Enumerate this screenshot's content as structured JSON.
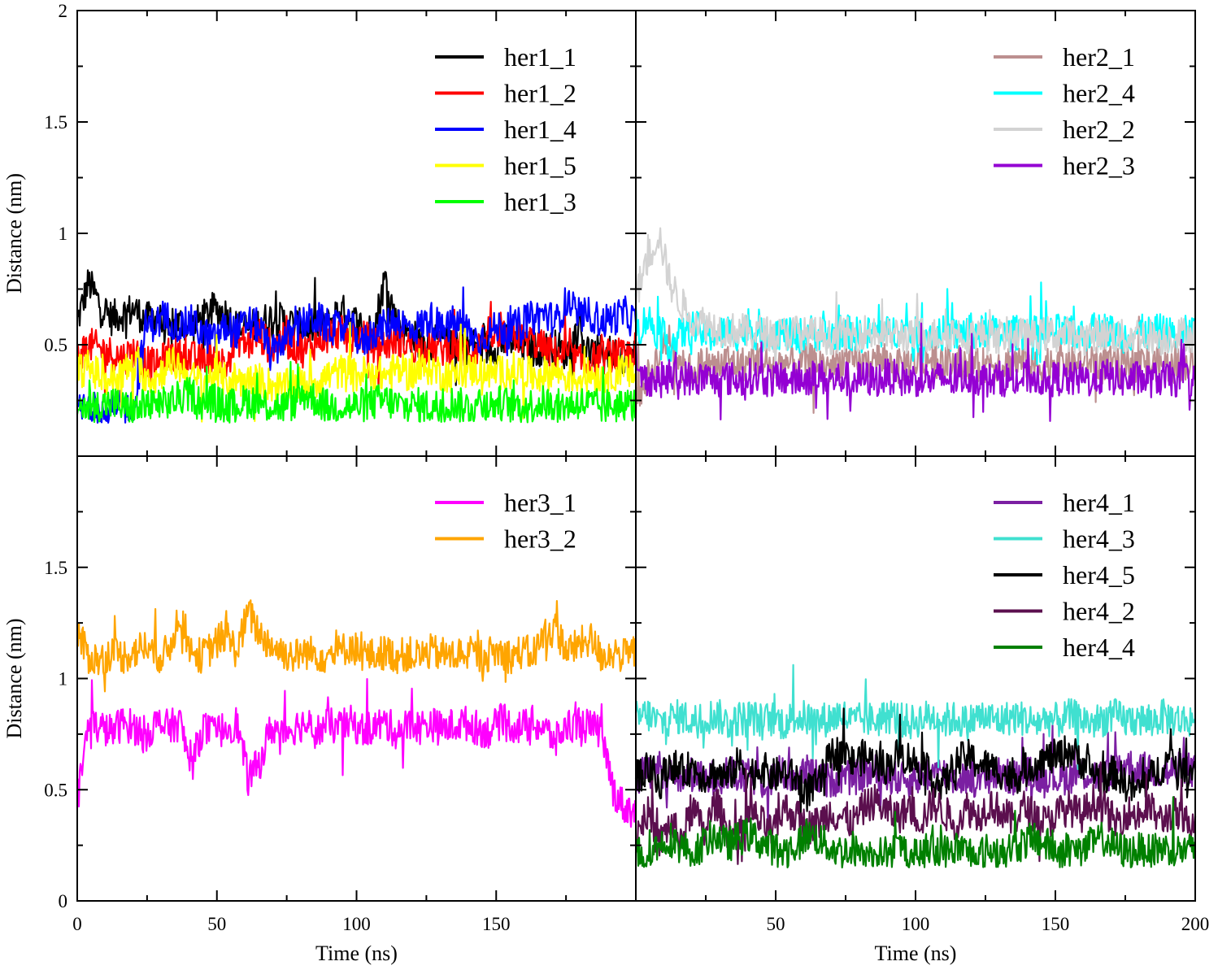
{
  "chart_data": [
    {
      "type": "line",
      "panel": "top-left",
      "xlabel": "",
      "ylabel": "Distance (nm)",
      "xlim": [
        0,
        200
      ],
      "ylim": [
        0,
        2
      ],
      "x_ticks": [],
      "y_ticks": [
        "0.5",
        "1",
        "1.5",
        "2"
      ],
      "legend_position": "top-right",
      "series": [
        {
          "name": "her1_1",
          "color": "#000000",
          "values": [
            0.6,
            0.78,
            0.68,
            0.62,
            0.64,
            0.66,
            0.61,
            0.63,
            0.55,
            0.6,
            0.58,
            0.62,
            0.66,
            0.64,
            0.58,
            0.57,
            0.6,
            0.62,
            0.61,
            0.59,
            0.58,
            0.57,
            0.59,
            0.66,
            0.62,
            0.58,
            0.56,
            0.8,
            0.6,
            0.55,
            0.52,
            0.5,
            0.52,
            0.48,
            0.49,
            0.5,
            0.48,
            0.5,
            0.52,
            0.49,
            0.48,
            0.48,
            0.49,
            0.46,
            0.58,
            0.45,
            0.47,
            0.46,
            0.45,
            0.45
          ]
        },
        {
          "name": "her1_2",
          "color": "#ff0000",
          "values": [
            0.45,
            0.5,
            0.48,
            0.46,
            0.44,
            0.47,
            0.42,
            0.4,
            0.46,
            0.45,
            0.44,
            0.43,
            0.46,
            0.4,
            0.53,
            0.5,
            0.55,
            0.48,
            0.52,
            0.5,
            0.47,
            0.52,
            0.55,
            0.56,
            0.52,
            0.54,
            0.5,
            0.5,
            0.53,
            0.51,
            0.48,
            0.49,
            0.48,
            0.5,
            0.47,
            0.48,
            0.55,
            0.52,
            0.54,
            0.53,
            0.52,
            0.48,
            0.46,
            0.45,
            0.42,
            0.43,
            0.44,
            0.46,
            0.44,
            0.48
          ]
        },
        {
          "name": "her1_4",
          "color": "#0000ff",
          "values": [
            0.2,
            0.22,
            0.21,
            0.2,
            0.22,
            0.21,
            0.58,
            0.6,
            0.62,
            0.58,
            0.6,
            0.55,
            0.52,
            0.58,
            0.56,
            0.6,
            0.58,
            0.45,
            0.52,
            0.55,
            0.6,
            0.62,
            0.58,
            0.57,
            0.58,
            0.5,
            0.56,
            0.58,
            0.62,
            0.57,
            0.58,
            0.62,
            0.56,
            0.6,
            0.58,
            0.52,
            0.55,
            0.58,
            0.56,
            0.6,
            0.62,
            0.64,
            0.6,
            0.7,
            0.62,
            0.64,
            0.6,
            0.62,
            0.64,
            0.6
          ]
        },
        {
          "name": "her1_5",
          "color": "#ffff00",
          "values": [
            0.38,
            0.4,
            0.36,
            0.34,
            0.38,
            0.4,
            0.36,
            0.35,
            0.42,
            0.4,
            0.35,
            0.33,
            0.36,
            0.34,
            0.35,
            0.33,
            0.34,
            0.32,
            0.3,
            0.33,
            0.32,
            0.34,
            0.36,
            0.38,
            0.36,
            0.37,
            0.38,
            0.36,
            0.39,
            0.37,
            0.38,
            0.4,
            0.37,
            0.36,
            0.38,
            0.39,
            0.38,
            0.37,
            0.39,
            0.38,
            0.36,
            0.37,
            0.38,
            0.36,
            0.35,
            0.37,
            0.36,
            0.37,
            0.38,
            0.37
          ]
        },
        {
          "name": "her1_3",
          "color": "#00ff00",
          "values": [
            0.21,
            0.23,
            0.22,
            0.24,
            0.22,
            0.2,
            0.23,
            0.22,
            0.24,
            0.26,
            0.28,
            0.24,
            0.25,
            0.22,
            0.23,
            0.25,
            0.24,
            0.23,
            0.22,
            0.24,
            0.28,
            0.25,
            0.22,
            0.23,
            0.22,
            0.23,
            0.24,
            0.25,
            0.23,
            0.22,
            0.23,
            0.22,
            0.23,
            0.24,
            0.22,
            0.23,
            0.22,
            0.24,
            0.23,
            0.22,
            0.23,
            0.24,
            0.22,
            0.23,
            0.24,
            0.23,
            0.22,
            0.23,
            0.22,
            0.23
          ]
        }
      ]
    },
    {
      "type": "line",
      "panel": "top-right",
      "xlabel": "",
      "ylabel": "",
      "xlim": [
        0,
        200
      ],
      "ylim": [
        0,
        2
      ],
      "x_ticks": [],
      "y_ticks": [],
      "legend_position": "top-right",
      "series": [
        {
          "name": "her2_1",
          "color": "#bc8f8f",
          "values": [
            0.25,
            0.35,
            0.45,
            0.55,
            0.4,
            0.38,
            0.42,
            0.4,
            0.43,
            0.41,
            0.42,
            0.44,
            0.4,
            0.42,
            0.41,
            0.43,
            0.42,
            0.4,
            0.43,
            0.42,
            0.41,
            0.44,
            0.42,
            0.4,
            0.43,
            0.42,
            0.44,
            0.41,
            0.42,
            0.43,
            0.4,
            0.42,
            0.41,
            0.43,
            0.42,
            0.4,
            0.42,
            0.44,
            0.41,
            0.42,
            0.43,
            0.42,
            0.41,
            0.42,
            0.43,
            0.41,
            0.42,
            0.4,
            0.42,
            0.41
          ]
        },
        {
          "name": "her2_4",
          "color": "#00ffff",
          "values": [
            0.55,
            0.62,
            0.55,
            0.5,
            0.55,
            0.58,
            0.55,
            0.54,
            0.56,
            0.55,
            0.57,
            0.54,
            0.56,
            0.55,
            0.53,
            0.56,
            0.55,
            0.54,
            0.56,
            0.55,
            0.54,
            0.56,
            0.55,
            0.57,
            0.55,
            0.54,
            0.56,
            0.55,
            0.54,
            0.57,
            0.55,
            0.56,
            0.54,
            0.55,
            0.56,
            0.55,
            0.54,
            0.56,
            0.55,
            0.54,
            0.56,
            0.57,
            0.55,
            0.54,
            0.56,
            0.55,
            0.56,
            0.54,
            0.55,
            0.56
          ]
        },
        {
          "name": "her2_2",
          "color": "#d3d3d3",
          "values": [
            0.72,
            0.88,
            1.0,
            0.78,
            0.68,
            0.62,
            0.6,
            0.58,
            0.56,
            0.57,
            0.55,
            0.56,
            0.54,
            0.55,
            0.56,
            0.54,
            0.55,
            0.53,
            0.55,
            0.54,
            0.56,
            0.55,
            0.54,
            0.55,
            0.53,
            0.55,
            0.54,
            0.55,
            0.56,
            0.54,
            0.55,
            0.53,
            0.54,
            0.55,
            0.54,
            0.53,
            0.55,
            0.54,
            0.55,
            0.53,
            0.54,
            0.55,
            0.54,
            0.53,
            0.55,
            0.54,
            0.53,
            0.54,
            0.55,
            0.54
          ]
        },
        {
          "name": "her2_3",
          "color": "#9400d3",
          "values": [
            0.34,
            0.35,
            0.34,
            0.35,
            0.36,
            0.34,
            0.35,
            0.34,
            0.35,
            0.34,
            0.36,
            0.35,
            0.34,
            0.35,
            0.34,
            0.35,
            0.36,
            0.34,
            0.35,
            0.34,
            0.35,
            0.34,
            0.36,
            0.35,
            0.34,
            0.35,
            0.34,
            0.35,
            0.34,
            0.36,
            0.35,
            0.34,
            0.35,
            0.34,
            0.35,
            0.36,
            0.34,
            0.35,
            0.34,
            0.35,
            0.34,
            0.36,
            0.35,
            0.34,
            0.35,
            0.34,
            0.35,
            0.34,
            0.35,
            0.34
          ]
        }
      ]
    },
    {
      "type": "line",
      "panel": "bottom-left",
      "xlabel": "Time (ns)",
      "ylabel": "Distance (nm)",
      "xlim": [
        0,
        200
      ],
      "ylim": [
        0,
        2
      ],
      "x_ticks": [
        "0",
        "50",
        "100",
        "150"
      ],
      "y_ticks": [
        "0",
        "0.5",
        "1",
        "1.5"
      ],
      "legend_position": "top-right",
      "series": [
        {
          "name": "her3_1",
          "color": "#ff00ff",
          "values": [
            0.45,
            0.8,
            0.78,
            0.76,
            0.8,
            0.78,
            0.75,
            0.8,
            0.78,
            0.8,
            0.6,
            0.78,
            0.75,
            0.78,
            0.8,
            0.55,
            0.62,
            0.78,
            0.76,
            0.78,
            0.8,
            0.76,
            0.79,
            0.78,
            0.8,
            0.77,
            0.78,
            0.8,
            0.76,
            0.79,
            0.78,
            0.8,
            0.77,
            0.79,
            0.8,
            0.78,
            0.76,
            0.8,
            0.79,
            0.78,
            0.8,
            0.77,
            0.72,
            0.79,
            0.8,
            0.78,
            0.76,
            0.5,
            0.42,
            0.4
          ]
        },
        {
          "name": "her3_2",
          "color": "#ffa500",
          "values": [
            1.2,
            1.1,
            1.08,
            1.12,
            1.1,
            1.12,
            1.15,
            1.1,
            1.12,
            1.3,
            1.12,
            1.1,
            1.15,
            1.2,
            1.12,
            1.3,
            1.2,
            1.15,
            1.12,
            1.1,
            1.12,
            1.11,
            1.1,
            1.12,
            1.15,
            1.11,
            1.1,
            1.12,
            1.1,
            1.11,
            1.1,
            1.12,
            1.11,
            1.1,
            1.12,
            1.1,
            1.11,
            1.12,
            1.1,
            1.12,
            1.11,
            1.2,
            1.22,
            1.12,
            1.15,
            1.18,
            1.1,
            1.12,
            1.1,
            1.12
          ]
        }
      ]
    },
    {
      "type": "line",
      "panel": "bottom-right",
      "xlabel": "Time (ns)",
      "ylabel": "",
      "xlim": [
        0,
        200
      ],
      "ylim": [
        0,
        2
      ],
      "x_ticks": [
        "50",
        "100",
        "150",
        "200"
      ],
      "y_ticks": [],
      "legend_position": "top-right",
      "series": [
        {
          "name": "her4_1",
          "color": "#7b1fa2",
          "values": [
            0.55,
            0.58,
            0.6,
            0.56,
            0.55,
            0.57,
            0.54,
            0.56,
            0.58,
            0.55,
            0.56,
            0.54,
            0.55,
            0.57,
            0.56,
            0.58,
            0.55,
            0.54,
            0.56,
            0.55,
            0.57,
            0.58,
            0.56,
            0.55,
            0.54,
            0.56,
            0.58,
            0.57,
            0.55,
            0.56,
            0.54,
            0.56,
            0.57,
            0.55,
            0.58,
            0.56,
            0.57,
            0.55,
            0.56,
            0.58,
            0.57,
            0.55,
            0.6,
            0.62,
            0.58,
            0.6,
            0.57,
            0.58,
            0.6,
            0.58
          ]
        },
        {
          "name": "her4_3",
          "color": "#40e0d0",
          "values": [
            0.82,
            0.84,
            0.8,
            0.82,
            0.83,
            0.81,
            0.82,
            0.84,
            0.8,
            0.82,
            0.83,
            0.81,
            0.82,
            0.8,
            0.83,
            0.82,
            0.81,
            0.82,
            0.84,
            0.8,
            0.82,
            0.81,
            0.83,
            0.82,
            0.8,
            0.82,
            0.83,
            0.81,
            0.82,
            0.8,
            0.83,
            0.82,
            0.81,
            0.83,
            0.82,
            0.8,
            0.82,
            0.81,
            0.83,
            0.82,
            0.8,
            0.82,
            0.83,
            0.81,
            0.82,
            0.8,
            0.83,
            0.82,
            0.81,
            0.82
          ]
        },
        {
          "name": "her4_5",
          "color": "#000000",
          "values": [
            0.55,
            0.6,
            0.52,
            0.62,
            0.58,
            0.6,
            0.56,
            0.58,
            0.55,
            0.62,
            0.57,
            0.6,
            0.56,
            0.58,
            0.55,
            0.5,
            0.52,
            0.65,
            0.68,
            0.62,
            0.65,
            0.62,
            0.6,
            0.66,
            0.64,
            0.6,
            0.55,
            0.52,
            0.62,
            0.65,
            0.62,
            0.6,
            0.58,
            0.55,
            0.58,
            0.62,
            0.64,
            0.65,
            0.68,
            0.63,
            0.58,
            0.55,
            0.58,
            0.52,
            0.5,
            0.55,
            0.6,
            0.65,
            0.58,
            0.6
          ]
        },
        {
          "name": "her4_2",
          "color": "#5b0f4e",
          "values": [
            0.3,
            0.4,
            0.25,
            0.35,
            0.28,
            0.42,
            0.3,
            0.45,
            0.32,
            0.28,
            0.4,
            0.35,
            0.3,
            0.42,
            0.38,
            0.33,
            0.35,
            0.4,
            0.38,
            0.35,
            0.42,
            0.45,
            0.4,
            0.38,
            0.42,
            0.36,
            0.44,
            0.4,
            0.35,
            0.42,
            0.38,
            0.44,
            0.4,
            0.36,
            0.42,
            0.38,
            0.35,
            0.4,
            0.42,
            0.38,
            0.45,
            0.42,
            0.35,
            0.4,
            0.38,
            0.42,
            0.36,
            0.4,
            0.35,
            0.38
          ]
        },
        {
          "name": "her4_4",
          "color": "#008000",
          "values": [
            0.22,
            0.2,
            0.25,
            0.28,
            0.24,
            0.22,
            0.26,
            0.3,
            0.25,
            0.28,
            0.3,
            0.26,
            0.24,
            0.22,
            0.25,
            0.3,
            0.28,
            0.24,
            0.22,
            0.24,
            0.22,
            0.2,
            0.22,
            0.24,
            0.22,
            0.21,
            0.23,
            0.22,
            0.24,
            0.22,
            0.21,
            0.23,
            0.22,
            0.24,
            0.26,
            0.28,
            0.25,
            0.22,
            0.24,
            0.22,
            0.26,
            0.28,
            0.24,
            0.22,
            0.23,
            0.22,
            0.24,
            0.22,
            0.23,
            0.22
          ]
        }
      ]
    }
  ]
}
